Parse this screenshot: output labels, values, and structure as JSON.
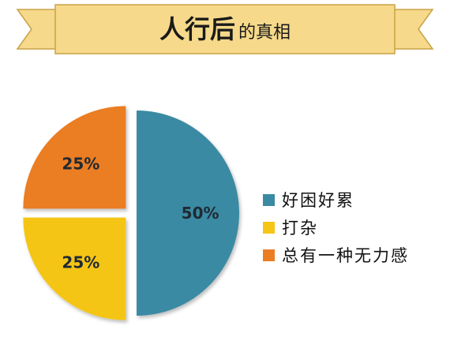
{
  "title": {
    "main": "人行后",
    "sub": "的真相"
  },
  "colors": {
    "ribbon_fill": "#f6d98a",
    "ribbon_stroke": "#c8a246",
    "background": "#ffffff"
  },
  "chart_data": {
    "type": "pie",
    "title": "人行后的真相",
    "slices": [
      {
        "label": "好困好累",
        "value": 50,
        "display": "50%",
        "color": "#3a8aa3"
      },
      {
        "label": "打杂",
        "value": 25,
        "display": "25%",
        "color": "#f5c518"
      },
      {
        "label": "总有一种无力感",
        "value": 25,
        "display": "25%",
        "color": "#eb7d22"
      }
    ],
    "legend_position": "right"
  }
}
